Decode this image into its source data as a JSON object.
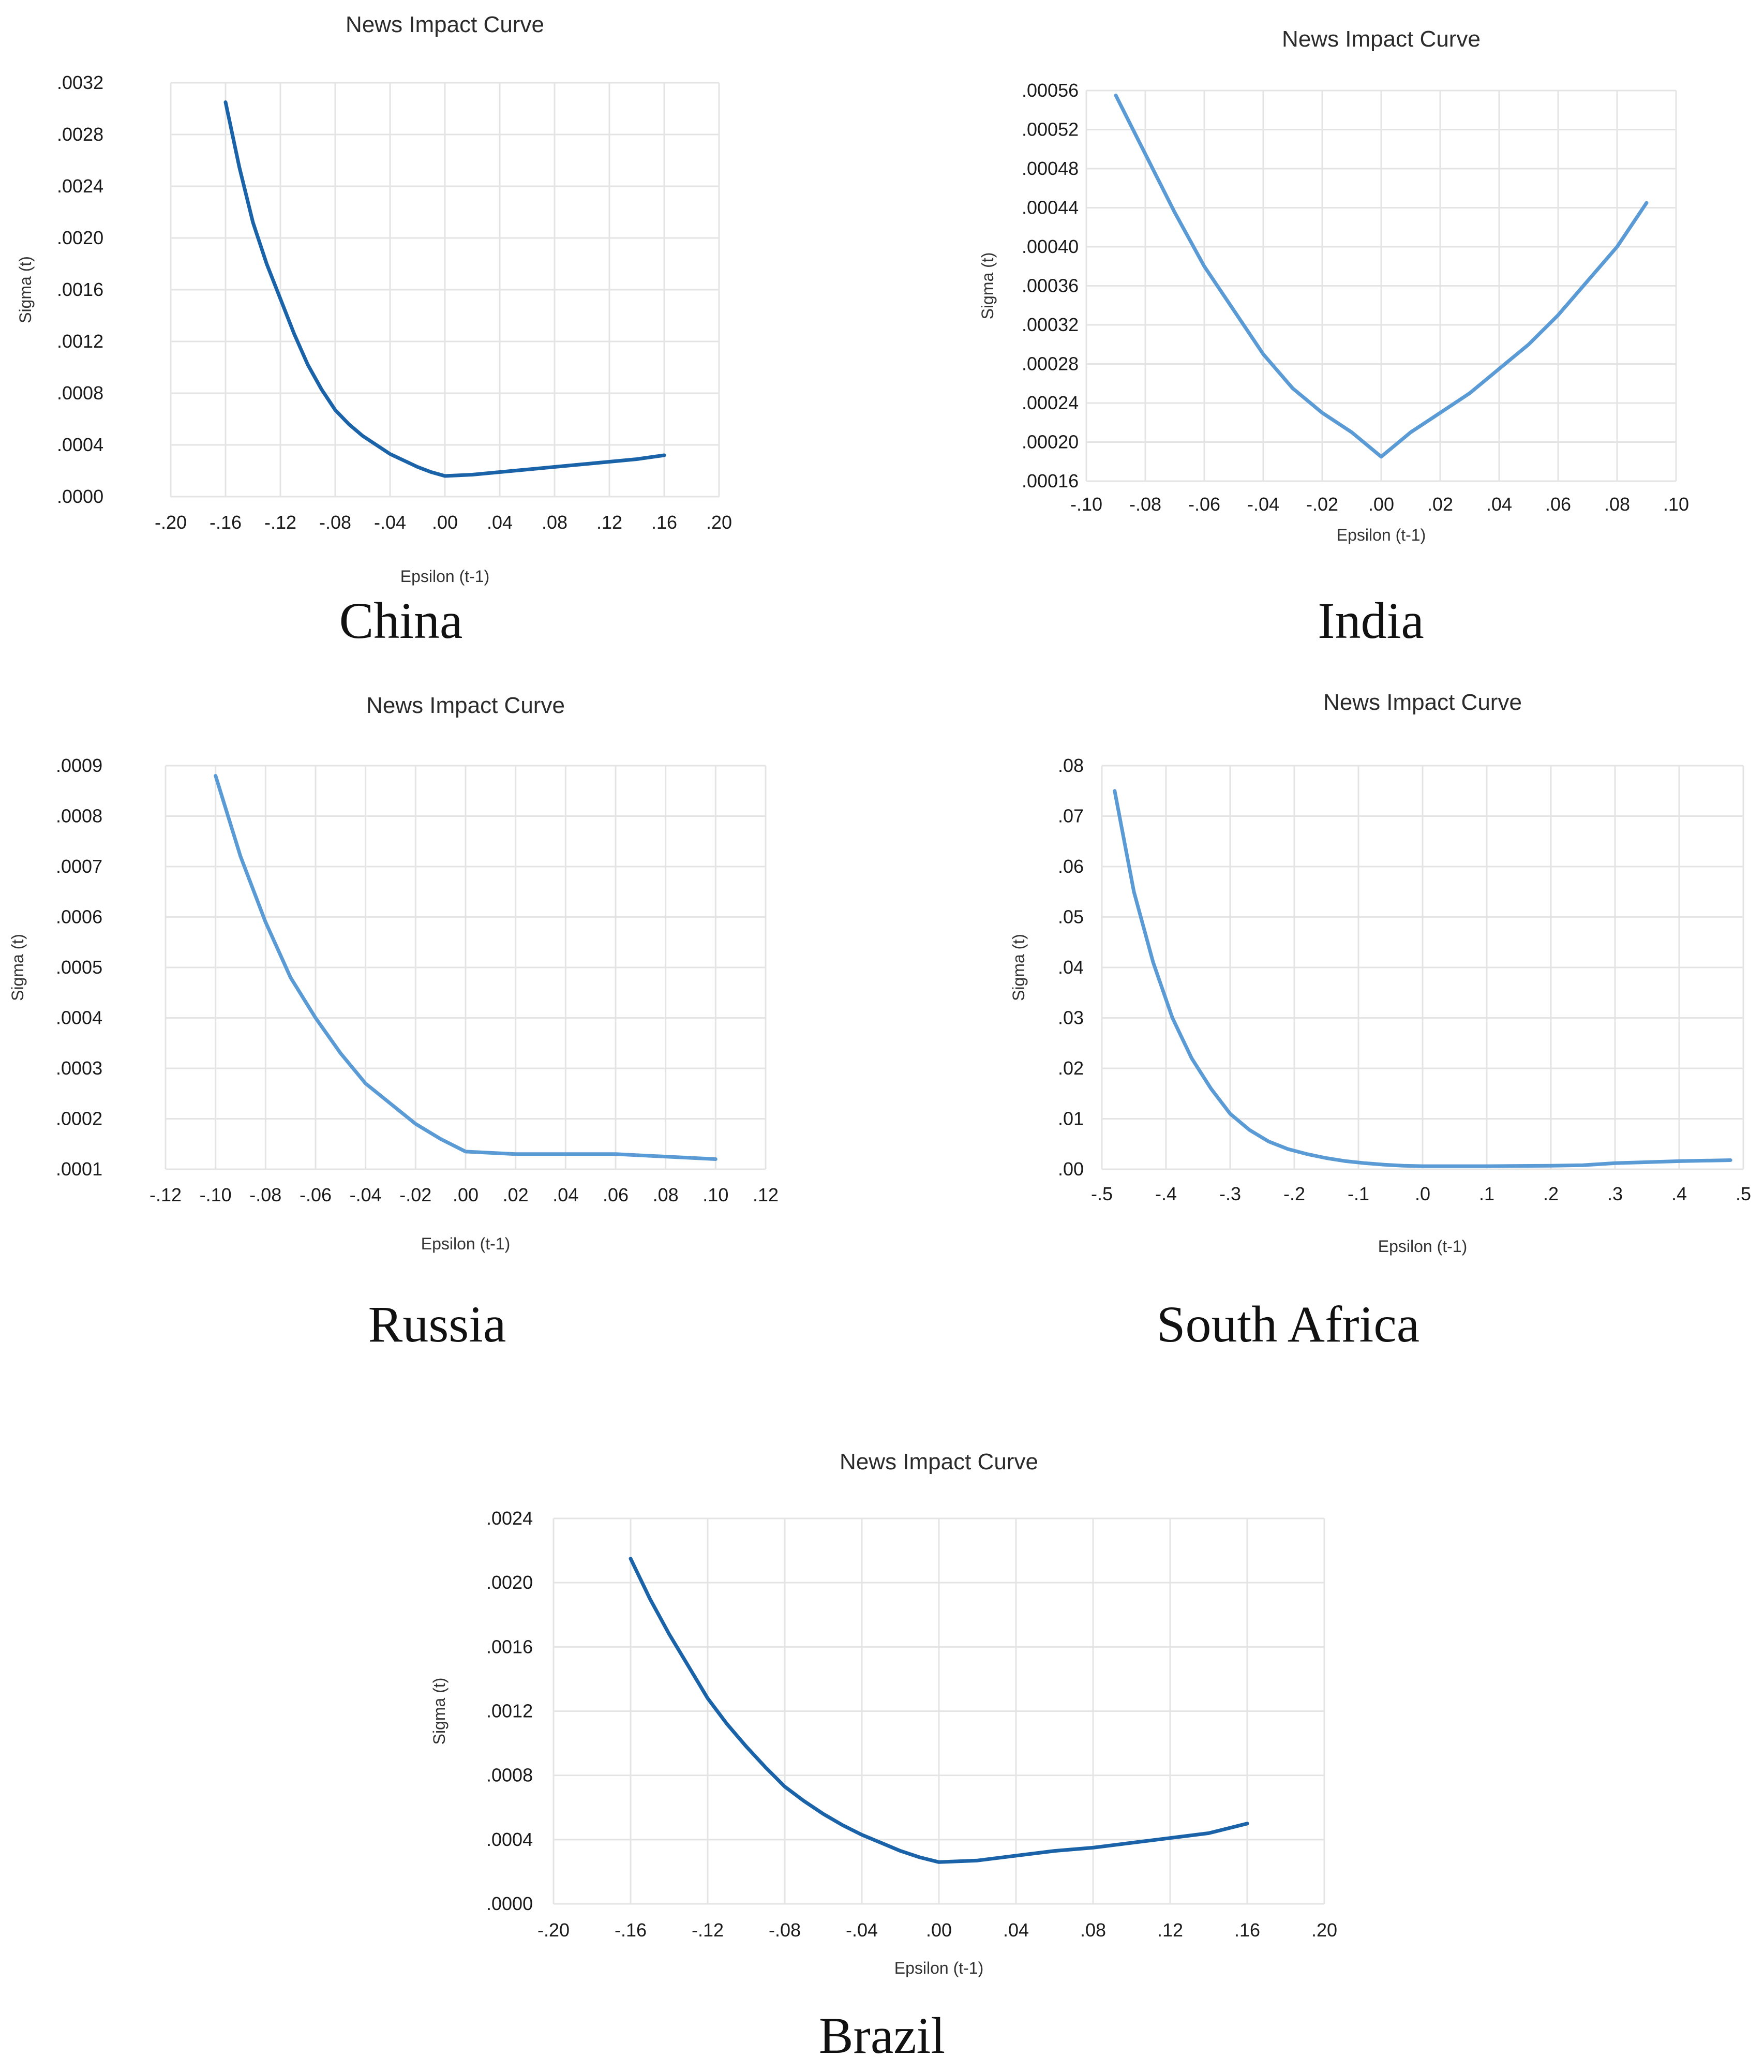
{
  "chart_data": [
    {
      "type": "line",
      "country": "China",
      "title": "News Impact Curve",
      "xlabel": "Epsilon (t-1)",
      "ylabel": "Sigma (t)",
      "xlim": [
        -0.2,
        0.2
      ],
      "ylim": [
        0.0,
        0.0032
      ],
      "xticks": [
        -0.2,
        -0.16,
        -0.12,
        -0.08,
        -0.04,
        0.0,
        0.04,
        0.08,
        0.12,
        0.16,
        0.2
      ],
      "xtick_labels": [
        "-.20",
        "-.16",
        "-.12",
        "-.08",
        "-.04",
        ".00",
        ".04",
        ".08",
        ".12",
        ".16",
        ".20"
      ],
      "yticks": [
        0.0,
        0.0004,
        0.0008,
        0.0012,
        0.0016,
        0.002,
        0.0024,
        0.0028,
        0.0032
      ],
      "ytick_labels": [
        ".0000",
        ".0004",
        ".0008",
        ".0012",
        ".0016",
        ".0020",
        ".0024",
        ".0028",
        ".0032"
      ],
      "grid": true,
      "series": [
        {
          "color": "#1a63a8",
          "x": [
            -0.16,
            -0.15,
            -0.14,
            -0.13,
            -0.12,
            -0.11,
            -0.1,
            -0.09,
            -0.08,
            -0.07,
            -0.06,
            -0.05,
            -0.04,
            -0.03,
            -0.02,
            -0.01,
            0.0,
            0.02,
            0.04,
            0.06,
            0.08,
            0.1,
            0.12,
            0.14,
            0.16
          ],
          "y": [
            0.00305,
            0.00255,
            0.00212,
            0.0018,
            0.00153,
            0.00126,
            0.00102,
            0.00083,
            0.00067,
            0.00056,
            0.00047,
            0.0004,
            0.00033,
            0.00028,
            0.00023,
            0.00019,
            0.00016,
            0.00017,
            0.00019,
            0.00021,
            0.00023,
            0.00025,
            0.00027,
            0.00029,
            0.00032
          ]
        }
      ]
    },
    {
      "type": "line",
      "country": "India",
      "title": "News Impact Curve",
      "xlabel": "Epsilon (t-1)",
      "ylabel": "Sigma (t)",
      "xlim": [
        -0.1,
        0.1
      ],
      "ylim": [
        0.00016,
        0.00056
      ],
      "xticks": [
        -0.1,
        -0.08,
        -0.06,
        -0.04,
        -0.02,
        0.0,
        0.02,
        0.04,
        0.06,
        0.08,
        0.1
      ],
      "xtick_labels": [
        "-.10",
        "-.08",
        "-.06",
        "-.04",
        "-.02",
        ".00",
        ".02",
        ".04",
        ".06",
        ".08",
        ".10"
      ],
      "yticks": [
        0.00016,
        0.0002,
        0.00024,
        0.00028,
        0.00032,
        0.00036,
        0.0004,
        0.00044,
        0.00048,
        0.00052,
        0.00056
      ],
      "ytick_labels": [
        ".00016",
        ".00020",
        ".00024",
        ".00028",
        ".00032",
        ".00036",
        ".00040",
        ".00044",
        ".00048",
        ".00052",
        ".00056"
      ],
      "grid": true,
      "series": [
        {
          "color": "#5b9bd5",
          "x": [
            -0.09,
            -0.08,
            -0.07,
            -0.06,
            -0.05,
            -0.04,
            -0.03,
            -0.02,
            -0.01,
            0.0,
            0.01,
            0.02,
            0.03,
            0.04,
            0.05,
            0.06,
            0.07,
            0.08,
            0.09
          ],
          "y": [
            0.000555,
            0.000495,
            0.000435,
            0.00038,
            0.000335,
            0.00029,
            0.000255,
            0.00023,
            0.00021,
            0.000185,
            0.00021,
            0.00023,
            0.00025,
            0.000275,
            0.0003,
            0.00033,
            0.000365,
            0.0004,
            0.000445
          ]
        }
      ]
    },
    {
      "type": "line",
      "country": "Russia",
      "title": "News Impact Curve",
      "xlabel": "Epsilon (t-1)",
      "ylabel": "Sigma (t)",
      "xlim": [
        -0.12,
        0.12
      ],
      "ylim": [
        0.0001,
        0.0009
      ],
      "xticks": [
        -0.12,
        -0.1,
        -0.08,
        -0.06,
        -0.04,
        -0.02,
        0.0,
        0.02,
        0.04,
        0.06,
        0.08,
        0.1,
        0.12
      ],
      "xtick_labels": [
        "-.12",
        "-.10",
        "-.08",
        "-.06",
        "-.04",
        "-.02",
        ".00",
        ".02",
        ".04",
        ".06",
        ".08",
        ".10",
        ".12"
      ],
      "yticks": [
        0.0001,
        0.0002,
        0.0003,
        0.0004,
        0.0005,
        0.0006,
        0.0007,
        0.0008,
        0.0009
      ],
      "ytick_labels": [
        ".0001",
        ".0002",
        ".0003",
        ".0004",
        ".0005",
        ".0006",
        ".0007",
        ".0008",
        ".0009"
      ],
      "grid": true,
      "series": [
        {
          "color": "#5b9bd5",
          "x": [
            -0.1,
            -0.09,
            -0.08,
            -0.07,
            -0.06,
            -0.05,
            -0.04,
            -0.03,
            -0.02,
            -0.01,
            0.0,
            0.02,
            0.04,
            0.06,
            0.08,
            0.1
          ],
          "y": [
            0.00088,
            0.00072,
            0.00059,
            0.00048,
            0.0004,
            0.00033,
            0.00027,
            0.00023,
            0.00019,
            0.00016,
            0.000135,
            0.00013,
            0.00013,
            0.00013,
            0.000125,
            0.00012
          ]
        }
      ]
    },
    {
      "type": "line",
      "country": "South Africa",
      "title": "News Impact Curve",
      "xlabel": "Epsilon (t-1)",
      "ylabel": "Sigma (t)",
      "xlim": [
        -0.5,
        0.5
      ],
      "ylim": [
        0.0,
        0.08
      ],
      "xticks": [
        -0.5,
        -0.4,
        -0.3,
        -0.2,
        -0.1,
        0.0,
        0.1,
        0.2,
        0.3,
        0.4,
        0.5
      ],
      "xtick_labels": [
        "-.5",
        "-.4",
        "-.3",
        "-.2",
        "-.1",
        ".0",
        ".1",
        ".2",
        ".3",
        ".4",
        ".5"
      ],
      "yticks": [
        0.0,
        0.01,
        0.02,
        0.03,
        0.04,
        0.05,
        0.06,
        0.07,
        0.08
      ],
      "ytick_labels": [
        ".00",
        ".01",
        ".02",
        ".03",
        ".04",
        ".05",
        ".06",
        ".07",
        ".08"
      ],
      "grid": true,
      "series": [
        {
          "color": "#5b9bd5",
          "x": [
            -0.48,
            -0.45,
            -0.42,
            -0.39,
            -0.36,
            -0.33,
            -0.3,
            -0.27,
            -0.24,
            -0.21,
            -0.18,
            -0.15,
            -0.12,
            -0.09,
            -0.06,
            -0.03,
            0.0,
            0.1,
            0.2,
            0.25,
            0.3,
            0.4,
            0.48
          ],
          "y": [
            0.075,
            0.055,
            0.041,
            0.03,
            0.022,
            0.016,
            0.011,
            0.0078,
            0.0055,
            0.004,
            0.003,
            0.0022,
            0.0016,
            0.0012,
            0.0009,
            0.0007,
            0.0006,
            0.0006,
            0.0007,
            0.0008,
            0.0012,
            0.0016,
            0.0018
          ]
        }
      ]
    },
    {
      "type": "line",
      "country": "Brazil",
      "title": "News Impact Curve",
      "xlabel": "Epsilon (t-1)",
      "ylabel": "Sigma (t)",
      "xlim": [
        -0.2,
        0.2
      ],
      "ylim": [
        0.0,
        0.0024
      ],
      "xticks": [
        -0.2,
        -0.16,
        -0.12,
        -0.08,
        -0.04,
        0.0,
        0.04,
        0.08,
        0.12,
        0.16,
        0.2
      ],
      "xtick_labels": [
        "-.20",
        "-.16",
        "-.12",
        "-.08",
        "-.04",
        ".00",
        ".04",
        ".08",
        ".12",
        ".16",
        ".20"
      ],
      "yticks": [
        0.0,
        0.0004,
        0.0008,
        0.0012,
        0.0016,
        0.002,
        0.0024
      ],
      "ytick_labels": [
        ".0000",
        ".0004",
        ".0008",
        ".0012",
        ".0016",
        ".0020",
        ".0024"
      ],
      "grid": true,
      "series": [
        {
          "color": "#1a63a8",
          "x": [
            -0.16,
            -0.15,
            -0.14,
            -0.13,
            -0.12,
            -0.11,
            -0.1,
            -0.09,
            -0.08,
            -0.07,
            -0.06,
            -0.05,
            -0.04,
            -0.03,
            -0.02,
            -0.01,
            0.0,
            0.02,
            0.04,
            0.06,
            0.08,
            0.1,
            0.12,
            0.14,
            0.16
          ],
          "y": [
            0.00215,
            0.0019,
            0.00168,
            0.00148,
            0.00128,
            0.00112,
            0.00098,
            0.00085,
            0.00073,
            0.00064,
            0.00056,
            0.00049,
            0.00043,
            0.00038,
            0.00033,
            0.00029,
            0.00026,
            0.00027,
            0.0003,
            0.00033,
            0.00035,
            0.00038,
            0.00041,
            0.00044,
            0.0005
          ]
        }
      ]
    }
  ]
}
